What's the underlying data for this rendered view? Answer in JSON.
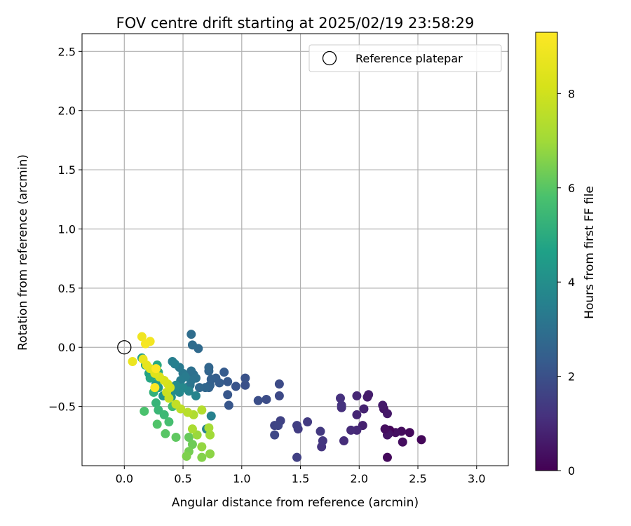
{
  "chart_data": {
    "type": "scatter",
    "title": "FOV centre drift starting at 2025/02/19 23:58:29",
    "xlabel": "Angular distance from reference (arcmin)",
    "ylabel": "Rotation from reference (arcmin)",
    "xlim": [
      -0.36,
      3.27
    ],
    "ylim": [
      -1.0,
      2.65
    ],
    "xticks": [
      "0.0",
      "0.5",
      "1.0",
      "1.5",
      "2.0",
      "2.5",
      "3.0"
    ],
    "xtick_values": [
      0,
      0.5,
      1,
      1.5,
      2,
      2.5,
      3
    ],
    "yticks": [
      "−0.5",
      "0.0",
      "0.5",
      "1.0",
      "1.5",
      "2.0",
      "2.5"
    ],
    "ytick_values": [
      -0.5,
      0,
      0.5,
      1,
      1.5,
      2,
      2.5
    ],
    "grid": true,
    "legend": {
      "position": "top-right",
      "entries": [
        "Reference platepar"
      ]
    },
    "reference_point": {
      "x": 0.0,
      "y": 0.0
    },
    "colorbar": {
      "label": "Hours from first FF file",
      "range": [
        0,
        9.3
      ],
      "ticks": [
        "0",
        "2",
        "4",
        "6",
        "8"
      ],
      "tick_values": [
        0,
        2,
        4,
        6,
        8
      ],
      "colormap": "viridis"
    },
    "series": [
      {
        "points": [
          [
            2.53,
            -0.78,
            0.15
          ],
          [
            2.43,
            -0.72,
            0.2
          ],
          [
            2.37,
            -0.8,
            0.3
          ],
          [
            2.36,
            -0.71,
            0.25
          ],
          [
            2.31,
            -0.72,
            0.35
          ],
          [
            2.26,
            -0.7,
            0.1
          ],
          [
            2.25,
            -0.73,
            0.4
          ],
          [
            2.24,
            -0.74,
            0.5
          ],
          [
            2.22,
            -0.69,
            0.3
          ],
          [
            2.21,
            -0.52,
            0.45
          ],
          [
            2.24,
            -0.56,
            0.55
          ],
          [
            2.2,
            -0.49,
            0.6
          ],
          [
            2.24,
            -0.93,
            0.2
          ],
          [
            2.08,
            -0.4,
            0.7
          ],
          [
            2.07,
            -0.42,
            0.65
          ],
          [
            2.04,
            -0.52,
            0.8
          ],
          [
            2.03,
            -0.66,
            0.75
          ],
          [
            1.98,
            -0.41,
            0.9
          ],
          [
            1.98,
            -0.57,
            0.85
          ],
          [
            1.98,
            -0.7,
            0.95
          ],
          [
            1.93,
            -0.7,
            1.0
          ],
          [
            1.87,
            -0.79,
            1.05
          ],
          [
            1.85,
            -0.51,
            1.1
          ],
          [
            1.84,
            -0.43,
            1.15
          ],
          [
            1.85,
            -0.49,
            1.2
          ],
          [
            1.68,
            -0.84,
            1.25
          ],
          [
            1.69,
            -0.79,
            1.3
          ],
          [
            1.67,
            -0.71,
            1.35
          ],
          [
            1.56,
            -0.63,
            1.4
          ],
          [
            1.48,
            -0.69,
            1.45
          ],
          [
            1.47,
            -0.66,
            1.5
          ],
          [
            1.47,
            -0.93,
            1.55
          ],
          [
            1.33,
            -0.62,
            1.6
          ],
          [
            1.28,
            -0.66,
            1.65
          ],
          [
            1.31,
            -0.66,
            1.7
          ],
          [
            1.28,
            -0.74,
            1.75
          ],
          [
            1.32,
            -0.41,
            1.8
          ],
          [
            1.32,
            -0.31,
            1.85
          ],
          [
            1.21,
            -0.44,
            1.9
          ],
          [
            1.14,
            -0.45,
            1.95
          ],
          [
            1.03,
            -0.32,
            2.0
          ],
          [
            1.03,
            -0.26,
            2.05
          ],
          [
            0.95,
            -0.33,
            2.1
          ],
          [
            0.89,
            -0.49,
            2.15
          ],
          [
            0.88,
            -0.4,
            2.2
          ],
          [
            0.88,
            -0.29,
            2.25
          ],
          [
            0.85,
            -0.21,
            2.3
          ],
          [
            0.81,
            -0.3,
            2.35
          ],
          [
            0.78,
            -0.26,
            2.4
          ],
          [
            0.74,
            -0.27,
            2.45
          ],
          [
            0.73,
            -0.32,
            2.5
          ],
          [
            0.72,
            -0.34,
            2.55
          ],
          [
            0.72,
            -0.2,
            2.6
          ],
          [
            0.72,
            -0.17,
            2.65
          ],
          [
            0.69,
            -0.34,
            2.7
          ],
          [
            0.64,
            -0.34,
            2.75
          ],
          [
            0.63,
            -0.01,
            2.8
          ],
          [
            0.58,
            0.02,
            2.85
          ],
          [
            0.57,
            0.11,
            2.9
          ],
          [
            0.59,
            -0.23,
            2.95
          ],
          [
            0.57,
            -0.2,
            3.0
          ],
          [
            0.61,
            -0.26,
            3.05
          ],
          [
            0.57,
            -0.28,
            3.1
          ],
          [
            0.56,
            -0.32,
            3.15
          ],
          [
            0.53,
            -0.34,
            3.2
          ],
          [
            0.5,
            -0.22,
            3.25
          ],
          [
            0.47,
            -0.17,
            3.3
          ],
          [
            0.52,
            -0.25,
            3.35
          ],
          [
            0.48,
            -0.28,
            3.4
          ],
          [
            0.41,
            -0.12,
            3.45
          ],
          [
            0.43,
            -0.14,
            3.5
          ],
          [
            0.74,
            -0.58,
            3.55
          ],
          [
            0.7,
            -0.69,
            3.6
          ],
          [
            0.61,
            -0.41,
            3.65
          ],
          [
            0.55,
            -0.37,
            3.7
          ],
          [
            0.5,
            -0.34,
            3.75
          ],
          [
            0.47,
            -0.38,
            3.8
          ],
          [
            0.43,
            -0.36,
            3.85
          ],
          [
            0.44,
            -0.32,
            3.9
          ],
          [
            0.4,
            -0.42,
            4.0
          ],
          [
            0.37,
            -0.38,
            4.1
          ],
          [
            0.33,
            -0.41,
            4.2
          ],
          [
            0.29,
            -0.34,
            4.3
          ],
          [
            0.27,
            -0.31,
            4.4
          ],
          [
            0.15,
            -0.09,
            4.5
          ],
          [
            0.18,
            -0.15,
            4.6
          ],
          [
            0.21,
            -0.22,
            4.7
          ],
          [
            0.22,
            -0.26,
            4.8
          ],
          [
            0.28,
            -0.15,
            4.9
          ],
          [
            0.29,
            -0.21,
            5.0
          ],
          [
            0.29,
            -0.25,
            5.1
          ],
          [
            0.25,
            -0.38,
            5.2
          ],
          [
            0.27,
            -0.47,
            5.3
          ],
          [
            0.29,
            -0.53,
            5.4
          ],
          [
            0.34,
            -0.57,
            5.5
          ],
          [
            0.41,
            -0.5,
            5.6
          ],
          [
            0.38,
            -0.63,
            5.7
          ],
          [
            0.17,
            -0.54,
            5.8
          ],
          [
            0.28,
            -0.65,
            5.9
          ],
          [
            0.35,
            -0.73,
            6.0
          ],
          [
            0.44,
            -0.76,
            6.1
          ],
          [
            0.55,
            -0.76,
            6.2
          ],
          [
            0.58,
            -0.82,
            6.3
          ],
          [
            0.55,
            -0.88,
            6.4
          ],
          [
            0.53,
            -0.92,
            6.5
          ],
          [
            0.66,
            -0.93,
            6.6
          ],
          [
            0.73,
            -0.9,
            6.7
          ],
          [
            0.66,
            -0.84,
            6.8
          ],
          [
            0.62,
            -0.74,
            6.9
          ],
          [
            0.73,
            -0.74,
            7.0
          ],
          [
            0.72,
            -0.68,
            7.1
          ],
          [
            0.58,
            -0.69,
            7.2
          ],
          [
            0.59,
            -0.57,
            7.3
          ],
          [
            0.66,
            -0.53,
            7.4
          ],
          [
            0.54,
            -0.55,
            7.5
          ],
          [
            0.48,
            -0.52,
            7.6
          ],
          [
            0.44,
            -0.48,
            7.7
          ],
          [
            0.38,
            -0.43,
            7.8
          ],
          [
            0.36,
            -0.38,
            7.9
          ],
          [
            0.39,
            -0.34,
            8.0
          ],
          [
            0.37,
            -0.31,
            8.1
          ],
          [
            0.34,
            -0.28,
            8.2
          ],
          [
            0.3,
            -0.25,
            8.3
          ],
          [
            0.26,
            -0.22,
            8.4
          ],
          [
            0.22,
            -0.18,
            8.5
          ],
          [
            0.19,
            -0.15,
            8.6
          ],
          [
            0.16,
            -0.1,
            8.7
          ],
          [
            0.07,
            -0.12,
            8.8
          ],
          [
            0.15,
            0.09,
            8.9
          ],
          [
            0.22,
            0.05,
            9.0
          ],
          [
            0.18,
            0.03,
            9.1
          ],
          [
            0.26,
            -0.34,
            9.2
          ],
          [
            0.27,
            -0.18,
            9.3
          ]
        ]
      }
    ]
  }
}
